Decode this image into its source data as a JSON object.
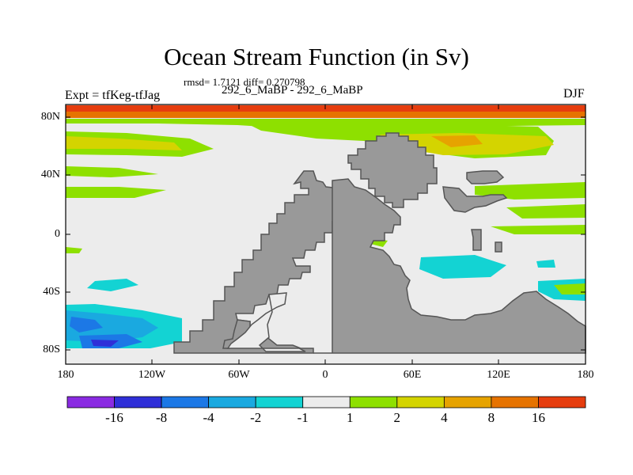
{
  "title": "Ocean Stream Function (in Sv)",
  "stats": "rmsd= 1.7121  diff= 0.270798",
  "subtitle": "292_6_MaBP - 292_6_MaBP",
  "experiment": "Expt = tfKeg-tfJag",
  "season": "DJF",
  "axes": {
    "y_ticks": [
      "80N",
      "40N",
      "0",
      "40S",
      "80S"
    ],
    "x_ticks": [
      "180",
      "120W",
      "60W",
      "0",
      "60E",
      "120E",
      "180"
    ]
  },
  "colorbar": {
    "labels": [
      "-16",
      "-8",
      "-4",
      "-2",
      "-1",
      "1",
      "2",
      "4",
      "8",
      "16"
    ],
    "colors": [
      "#8a2be2",
      "#2f2fd8",
      "#1c78e6",
      "#1aa9e0",
      "#13d3d3",
      "#ececec",
      "#8ee000",
      "#d4d400",
      "#e6a300",
      "#e67300",
      "#e63d0e"
    ]
  },
  "land_color": "#999999"
}
